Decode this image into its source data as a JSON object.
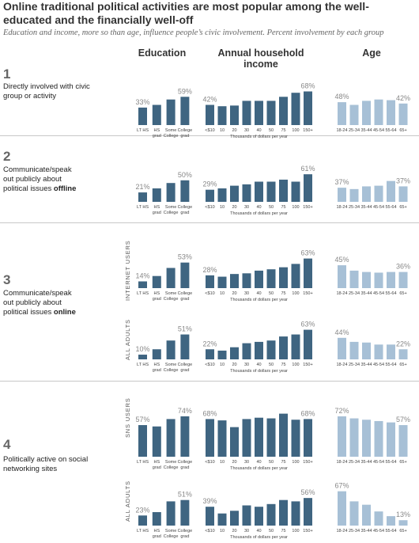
{
  "title": "Online traditional political activities are most popular among the well-educated and the financially well-off",
  "subtitle": "Education and income, more so than age, influence people’s civic involvement. Percent involvement by each group",
  "column_headers": {
    "education": "Education",
    "income": "Annual household income",
    "age": "Age"
  },
  "rows": [
    {
      "number": "1",
      "label": "Directly involved with civic group or activity",
      "bold": ""
    },
    {
      "number": "2",
      "label": "Communicate/speak out publicly about political issues ",
      "bold": "offline"
    },
    {
      "number": "3",
      "label": "Communicate/speak out publicly about political issues ",
      "bold": "online"
    },
    {
      "number": "4",
      "label": "Politically active on social networking sites",
      "bold": ""
    }
  ],
  "sublabels": {
    "internet": "INTERNET USERS",
    "all_adults": "ALL ADULTS",
    "sns": "SNS USERS"
  },
  "colors": {
    "dark": "#3f6581",
    "light": "#a7c0d6",
    "label": "#888888"
  },
  "chart_data": {
    "type": "bar",
    "groups": {
      "education": {
        "categories": [
          [
            "LT HS"
          ],
          [
            "HS",
            "grad"
          ],
          [
            "Some",
            "College"
          ],
          [
            "College",
            "grad"
          ]
        ],
        "color": "dark"
      },
      "income": {
        "categories": [
          [
            "<$10"
          ],
          [
            "10"
          ],
          [
            "20"
          ],
          [
            "30"
          ],
          [
            "40"
          ],
          [
            "50"
          ],
          [
            "75"
          ],
          [
            "100"
          ],
          [
            "150+"
          ]
        ],
        "axis_title": "Thousands of dollars per year",
        "color": "dark"
      },
      "age": {
        "categories": [
          [
            "18-24"
          ],
          [
            "25-34"
          ],
          [
            "35-44"
          ],
          [
            "45-54"
          ],
          [
            "55-64"
          ],
          [
            "65+"
          ]
        ],
        "color": "light"
      }
    },
    "panels": [
      {
        "id": "civic-group",
        "education": {
          "values": [
            26,
            30,
            38,
            42
          ],
          "labels": {
            "0": "33%",
            "3": "59%"
          }
        },
        "income": {
          "values": [
            30,
            28,
            29,
            36,
            36,
            36,
            42,
            48,
            50
          ],
          "labels": {
            "0": "42%",
            "8": "68%"
          }
        },
        "age": {
          "values": [
            34,
            30,
            36,
            38,
            37,
            32
          ],
          "labels": {
            "0": "48%",
            "5": "42%"
          }
        }
      },
      {
        "id": "offline",
        "education": {
          "values": [
            14,
            20,
            28,
            32
          ],
          "labels": {
            "0": "21%",
            "3": "50%"
          }
        },
        "income": {
          "values": [
            18,
            20,
            24,
            26,
            30,
            30,
            33,
            30,
            41
          ],
          "labels": {
            "0": "29%",
            "8": "61%"
          }
        },
        "age": {
          "values": [
            21,
            19,
            23,
            24,
            31,
            23
          ],
          "labels": {
            "0": "37%",
            "5": "37%"
          }
        }
      },
      {
        "id": "online-internet",
        "education": {
          "values": [
            10,
            18,
            30,
            38
          ],
          "labels": {
            "0": "14%",
            "3": "53%"
          }
        },
        "income": {
          "values": [
            19,
            17,
            21,
            22,
            26,
            28,
            31,
            36,
            44
          ],
          "labels": {
            "0": "28%",
            "8": "63%"
          }
        },
        "age": {
          "values": [
            34,
            26,
            24,
            23,
            24,
            24
          ],
          "labels": {
            "0": "45%",
            "5": "36%"
          }
        }
      },
      {
        "id": "online-all",
        "education": {
          "values": [
            7,
            15,
            28,
            37
          ],
          "labels": {
            "0": "10%",
            "3": "51%"
          }
        },
        "income": {
          "values": [
            15,
            13,
            18,
            24,
            26,
            28,
            34,
            37,
            44
          ],
          "labels": {
            "0": "22%",
            "8": "63%"
          }
        },
        "age": {
          "values": [
            32,
            26,
            25,
            22,
            22,
            15
          ],
          "labels": {
            "0": "44%",
            "5": "22%"
          }
        }
      },
      {
        "id": "sns-users",
        "education": {
          "values": [
            47,
            45,
            56,
            60
          ],
          "labels": {
            "0": "57%",
            "3": "74%"
          }
        },
        "income": {
          "values": [
            56,
            54,
            44,
            56,
            58,
            57,
            64,
            55,
            56
          ],
          "labels": {
            "0": "68%",
            "8": "68%"
          }
        },
        "age": {
          "values": [
            60,
            57,
            55,
            53,
            51,
            47
          ],
          "labels": {
            "0": "72%",
            "5": "57%"
          }
        }
      },
      {
        "id": "sns-all",
        "education": {
          "values": [
            15,
            20,
            36,
            38
          ],
          "labels": {
            "0": "23%",
            "3": "51%"
          }
        },
        "income": {
          "values": [
            28,
            18,
            22,
            30,
            28,
            32,
            38,
            36,
            41
          ],
          "labels": {
            "0": "39%",
            "8": "56%"
          }
        },
        "age": {
          "values": [
            51,
            36,
            31,
            21,
            14,
            8
          ],
          "labels": {
            "0": "67%",
            "5": "13%"
          }
        }
      }
    ]
  }
}
